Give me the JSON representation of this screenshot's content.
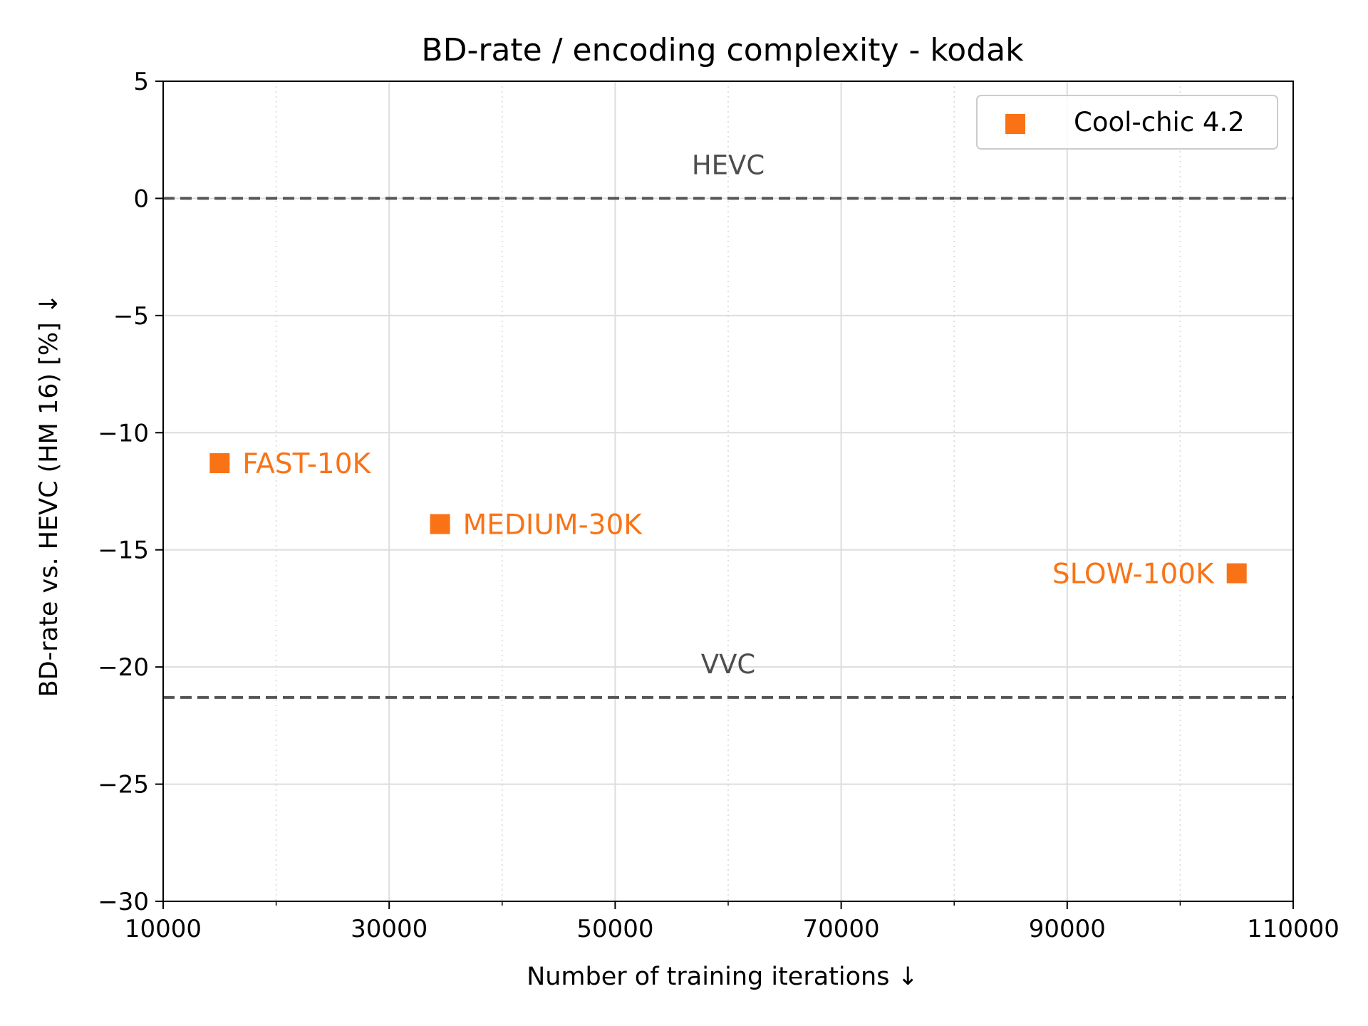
{
  "chart_data": {
    "type": "scatter",
    "title": "BD-rate / encoding complexity  - kodak",
    "xlabel": "Number of training iterations ↓",
    "ylabel": "BD-rate vs. HEVC (HM 16) [%]  ↓",
    "xlim": [
      10000,
      110000
    ],
    "ylim": [
      -30,
      5
    ],
    "x_ticks": [
      10000,
      30000,
      50000,
      70000,
      90000,
      110000
    ],
    "x_tick_labels": [
      "10000",
      "30000",
      "50000",
      "70000",
      "90000",
      "110000"
    ],
    "x_minor_ticks": [
      20000,
      40000,
      60000,
      80000,
      100000
    ],
    "y_ticks": [
      5,
      0,
      -5,
      -10,
      -15,
      -20,
      -25,
      -30
    ],
    "y_tick_labels": [
      "5",
      "0",
      "−5",
      "−10",
      "−15",
      "−20",
      "−25",
      "−30"
    ],
    "grid": true,
    "legend_position": "top-right",
    "series": [
      {
        "name": "Cool-chic 4.2",
        "color": "#f97316",
        "marker": "square",
        "points": [
          {
            "x": 15000,
            "y": -11.3,
            "label": "FAST-10K",
            "label_side": "right"
          },
          {
            "x": 34500,
            "y": -13.9,
            "label": "MEDIUM-30K",
            "label_side": "right"
          },
          {
            "x": 105000,
            "y": -16.0,
            "label": "SLOW-100K",
            "label_side": "left"
          }
        ]
      }
    ],
    "reference_lines": [
      {
        "name": "HEVC",
        "y": 0,
        "color": "#555555",
        "style": "dashed"
      },
      {
        "name": "VVC",
        "y": -21.3,
        "color": "#555555",
        "style": "dashed"
      }
    ]
  }
}
